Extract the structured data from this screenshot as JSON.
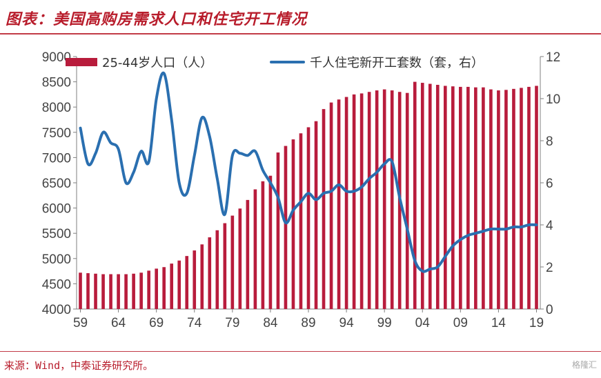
{
  "header": {
    "title": "图表：美国高购房需求人口和住宅开工情况"
  },
  "footer": {
    "source": "来源：Wind，中泰证券研究所。",
    "watermark": "格隆汇"
  },
  "chart_data": {
    "type": "bar",
    "title": "图表：美国高购房需求人口和住宅开工情况",
    "x_tick_labels": [
      "59",
      "64",
      "69",
      "74",
      "79",
      "84",
      "89",
      "94",
      "99",
      "04",
      "09",
      "14",
      "19"
    ],
    "y_left": {
      "ticks": [
        4000,
        4500,
        5000,
        5500,
        6000,
        6500,
        7000,
        7500,
        8000,
        8500,
        9000
      ],
      "range": [
        4000,
        9000
      ]
    },
    "y_right": {
      "ticks": [
        0,
        2,
        4,
        6,
        8,
        10,
        12
      ],
      "range": [
        0,
        12
      ]
    },
    "legend_position": "top",
    "series": [
      {
        "name": "25-44岁人口（人）",
        "type": "bar",
        "axis": "left",
        "color": "#b81c3c",
        "x": [
          1959,
          1960,
          1961,
          1962,
          1963,
          1964,
          1965,
          1966,
          1967,
          1968,
          1969,
          1970,
          1971,
          1972,
          1973,
          1974,
          1975,
          1976,
          1977,
          1978,
          1979,
          1980,
          1981,
          1982,
          1983,
          1984,
          1985,
          1986,
          1987,
          1988,
          1989,
          1990,
          1991,
          1992,
          1993,
          1994,
          1995,
          1996,
          1997,
          1998,
          1999,
          2000,
          2001,
          2002,
          2003,
          2004,
          2005,
          2006,
          2007,
          2008,
          2009,
          2010,
          2011,
          2012,
          2013,
          2014,
          2015,
          2016,
          2017,
          2018,
          2019
        ],
        "values": [
          4720,
          4710,
          4700,
          4690,
          4690,
          4690,
          4690,
          4700,
          4720,
          4760,
          4800,
          4830,
          4900,
          4960,
          5050,
          5160,
          5280,
          5420,
          5560,
          5700,
          5850,
          5990,
          6160,
          6370,
          6530,
          6640,
          7100,
          7230,
          7360,
          7480,
          7600,
          7720,
          7960,
          8090,
          8150,
          8200,
          8250,
          8270,
          8300,
          8330,
          8350,
          8330,
          8300,
          8280,
          8500,
          8480,
          8460,
          8440,
          8420,
          8410,
          8400,
          8400,
          8390,
          8390,
          8350,
          8330,
          8340,
          8360,
          8380,
          8400,
          8420
        ]
      },
      {
        "name": "千人住宅新开工套数（套，右）",
        "type": "line",
        "axis": "right",
        "color": "#2a6fb0",
        "x": [
          1959,
          1960,
          1961,
          1962,
          1963,
          1964,
          1965,
          1966,
          1967,
          1968,
          1969,
          1970,
          1971,
          1972,
          1973,
          1974,
          1975,
          1976,
          1977,
          1978,
          1979,
          1980,
          1981,
          1982,
          1983,
          1984,
          1985,
          1986,
          1987,
          1988,
          1989,
          1990,
          1991,
          1992,
          1993,
          1994,
          1995,
          1996,
          1997,
          1998,
          1999,
          2000,
          2001,
          2002,
          2003,
          2004,
          2005,
          2006,
          2007,
          2008,
          2009,
          2010,
          2011,
          2012,
          2013,
          2014,
          2015,
          2016,
          2017,
          2018,
          2019
        ],
        "values": [
          8.6,
          6.9,
          7.4,
          8.4,
          7.9,
          7.6,
          6.0,
          6.5,
          7.5,
          7.0,
          10.0,
          11.2,
          9.0,
          6.0,
          5.5,
          7.3,
          9.1,
          8.2,
          6.2,
          4.5,
          7.3,
          7.4,
          7.3,
          7.5,
          6.6,
          6.0,
          5.3,
          4.1,
          4.7,
          5.1,
          5.5,
          5.2,
          5.5,
          5.6,
          5.9,
          5.6,
          5.6,
          5.8,
          6.2,
          6.5,
          6.9,
          7.0,
          5.3,
          3.8,
          2.3,
          1.8,
          1.9,
          2.0,
          2.5,
          3.0,
          3.3,
          3.5,
          3.6,
          3.7,
          3.8,
          3.8,
          3.8,
          3.9,
          3.9,
          4.0,
          4.0
        ]
      }
    ]
  }
}
